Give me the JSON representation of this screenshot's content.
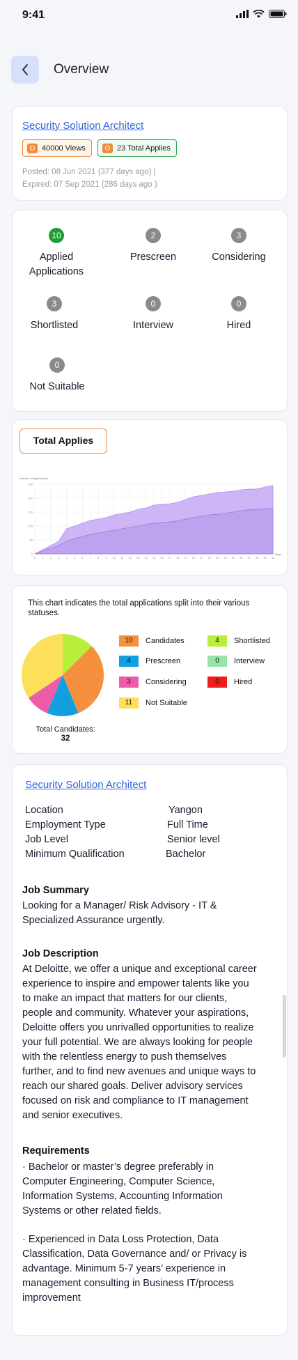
{
  "status_bar": {
    "time": "9:41"
  },
  "header": {
    "title": "Overview"
  },
  "job": {
    "title": "Security Solution Architect",
    "views": "40000 Views",
    "applies": "23 Total Applies",
    "posted": "Posted: 08 Jun 2021 (377 days ago) |",
    "expired": "Expired: 07 Sep 2021 (286 days ago )"
  },
  "statuses": [
    {
      "count": "10",
      "label": "Applied Applications",
      "accent": "#1f9c34"
    },
    {
      "count": "2",
      "label": "Prescreen"
    },
    {
      "count": "3",
      "label": "Considering"
    },
    {
      "count": "3",
      "label": "Shortlisted"
    },
    {
      "count": "0",
      "label": "Interview"
    },
    {
      "count": "0",
      "label": "Hired"
    },
    {
      "count": "0",
      "label": "Not Suitable"
    }
  ],
  "total_applies": {
    "button_label": "Total Applies",
    "chart_data": {
      "type": "area",
      "ylabel": "Number of applications",
      "xlabel": "Days",
      "x": [
        0,
        1,
        2,
        3,
        4,
        5,
        6,
        7,
        8,
        9,
        10,
        11,
        12,
        13,
        14,
        15,
        16,
        17,
        18,
        19,
        20,
        21,
        22,
        23,
        24,
        25,
        26,
        27,
        28,
        29,
        30
      ],
      "yticks": [
        0,
        50,
        100,
        150,
        200,
        250
      ],
      "ylim": [
        0,
        250
      ],
      "series": [
        {
          "values": [
            0,
            15,
            30,
            45,
            90,
            100,
            110,
            120,
            125,
            130,
            140,
            145,
            150,
            160,
            165,
            175,
            178,
            180,
            185,
            195,
            205,
            210,
            215,
            220,
            222,
            225,
            230,
            232,
            233,
            240,
            245
          ],
          "color": "#c6a8f4"
        },
        {
          "values": [
            0,
            10,
            20,
            30,
            45,
            55,
            62,
            70,
            75,
            80,
            85,
            90,
            95,
            100,
            105,
            110,
            112,
            115,
            118,
            125,
            130,
            135,
            140,
            142,
            145,
            150,
            155,
            158,
            160,
            162,
            162
          ],
          "color": "#a07ee6"
        }
      ]
    }
  },
  "pie": {
    "description": "This chart indicates the total applications split into their various statuses.",
    "total_label": "Total Candidates:",
    "total_value": "32",
    "chart_data": {
      "type": "pie",
      "slices": [
        {
          "label": "Shortlisted",
          "value": 4,
          "color": "#b8ef3a"
        },
        {
          "label": "Candidates",
          "value": 10,
          "color": "#f5913e"
        },
        {
          "label": "Prescreen",
          "value": 4,
          "color": "#129fe0"
        },
        {
          "label": "Considering",
          "value": 3,
          "color": "#ee5ba8"
        },
        {
          "label": "Not Suitable",
          "value": 11,
          "color": "#fde05a"
        }
      ]
    },
    "legend": [
      {
        "value": "10",
        "label": "Candidates",
        "color": "#f5913e"
      },
      {
        "value": "4",
        "label": "Shortlisted",
        "color": "#b8ef3a"
      },
      {
        "value": "4",
        "label": "Prescreen",
        "color": "#129fe0"
      },
      {
        "value": "0",
        "label": "Interview",
        "color": "#98e4a8"
      },
      {
        "value": "3",
        "label": "Considering",
        "color": "#ee5ba8"
      },
      {
        "value": "0",
        "label": "Hired",
        "color": "#f01c1c"
      },
      {
        "value": "11",
        "label": "Not Suitable",
        "color": "#fde05a"
      }
    ]
  },
  "details": {
    "title": "Security Solution Architect",
    "rows": [
      {
        "key": "Location",
        "value": "Yangon"
      },
      {
        "key": "Employment Type",
        "value": "Full Time"
      },
      {
        "key": "Job Level",
        "value": "Senior level"
      },
      {
        "key": "Minimum Qualification",
        "value": "Bachelor"
      }
    ],
    "summary_title": "Job Summary",
    "summary": "Looking for a Manager/ Risk Advisory - IT & Specialized Assurance urgently.",
    "description_title": "Job Description",
    "description": "At Deloitte, we offer a unique and exceptional career experience to inspire and empower talents like you to make an impact that matters for our clients, people and community. Whatever your aspirations, Deloitte offers you unrivalled opportunities to realize your full potential. We are always looking for people with the relentless energy to push themselves further, and to find new avenues and unique ways to reach our shared goals. Deliver advisory services focused on risk and compliance to IT management and senior executives.",
    "requirements_title": "Requirements",
    "req1": "·        Bachelor or master’s degree preferably in Computer Engineering, Computer Science, Information Systems, Accounting Information Systems or other related fields.",
    "req2": "·        Experienced in Data Loss Protection, Data Classification, Data Governance and/ or Privacy is advantage. Minimum 5-7 years’ experience in management consulting in Business IT/process improvement"
  }
}
